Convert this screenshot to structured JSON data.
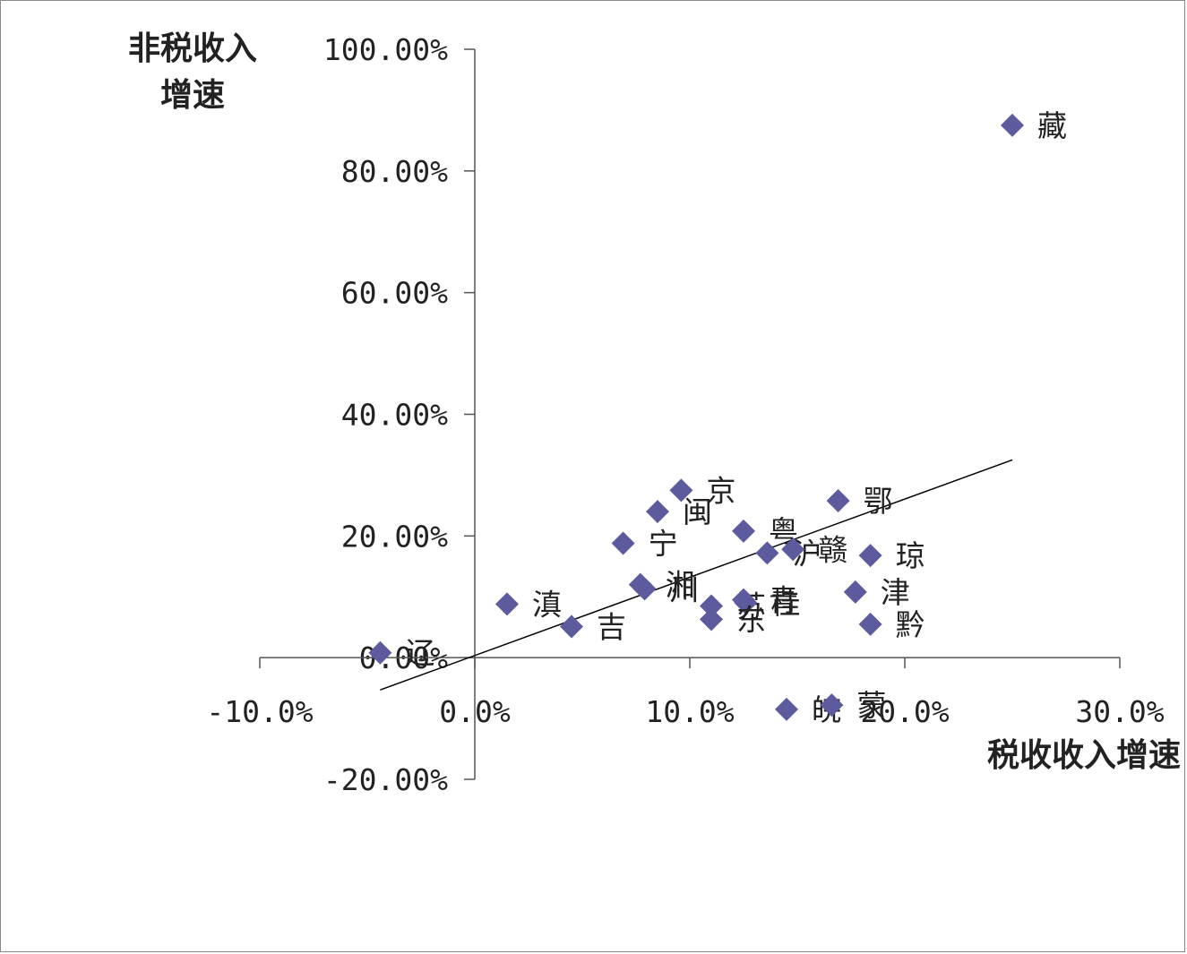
{
  "chart_data": {
    "type": "scatter",
    "ylabel_lines": [
      "非税收入",
      "增速"
    ],
    "xlabel": "税收收入增速",
    "xlim": [
      -0.1,
      0.3
    ],
    "ylim": [
      -0.2,
      1.0
    ],
    "x_ticks": [
      {
        "value": -0.1,
        "label": "-10.0%"
      },
      {
        "value": 0.0,
        "label": "0.0%"
      },
      {
        "value": 0.1,
        "label": "10.0%"
      },
      {
        "value": 0.2,
        "label": "20.0%"
      },
      {
        "value": 0.3,
        "label": "30.0%"
      }
    ],
    "y_ticks": [
      {
        "value": 1.0,
        "label": "100.00%"
      },
      {
        "value": 0.8,
        "label": "80.00%"
      },
      {
        "value": 0.6,
        "label": "60.00%"
      },
      {
        "value": 0.4,
        "label": "40.00%"
      },
      {
        "value": 0.2,
        "label": "20.00%"
      },
      {
        "value": 0.0,
        "label": "0.00%"
      },
      {
        "value": -0.2,
        "label": "-20.00%"
      }
    ],
    "marker_color": "#5b5b9e",
    "trendline_color": "#000000",
    "trendline": [
      [
        -0.044,
        -0.053
      ],
      [
        0.25,
        0.325
      ]
    ],
    "points": [
      {
        "label": "藏",
        "x": 0.25,
        "y": 0.875
      },
      {
        "label": "京",
        "x": 0.096,
        "y": 0.275
      },
      {
        "label": "闽",
        "x": 0.085,
        "y": 0.24
      },
      {
        "label": "鄂",
        "x": 0.169,
        "y": 0.258
      },
      {
        "label": "粤",
        "x": 0.125,
        "y": 0.208
      },
      {
        "label": "宁",
        "x": 0.069,
        "y": 0.188
      },
      {
        "label": "沪",
        "x": 0.136,
        "y": 0.172
      },
      {
        "label": "赣",
        "x": 0.148,
        "y": 0.178
      },
      {
        "label": "琼",
        "x": 0.184,
        "y": 0.168
      },
      {
        "label": "湘",
        "x": 0.077,
        "y": 0.12
      },
      {
        "label": "川",
        "x": 0.079,
        "y": 0.113
      },
      {
        "label": "津",
        "x": 0.177,
        "y": 0.108
      },
      {
        "label": "滇",
        "x": 0.015,
        "y": 0.088
      },
      {
        "label": "苏",
        "x": 0.11,
        "y": 0.085
      },
      {
        "label": "青",
        "x": 0.125,
        "y": 0.095
      },
      {
        "label": "桂",
        "x": 0.126,
        "y": 0.09
      },
      {
        "label": "东",
        "x": 0.11,
        "y": 0.063
      },
      {
        "label": "黔",
        "x": 0.184,
        "y": 0.055
      },
      {
        "label": "吉",
        "x": 0.045,
        "y": 0.051
      },
      {
        "label": "辽",
        "x": -0.044,
        "y": 0.008
      },
      {
        "label": "皖",
        "x": 0.145,
        "y": -0.085
      },
      {
        "label": "蒙",
        "x": 0.166,
        "y": -0.078
      }
    ]
  }
}
